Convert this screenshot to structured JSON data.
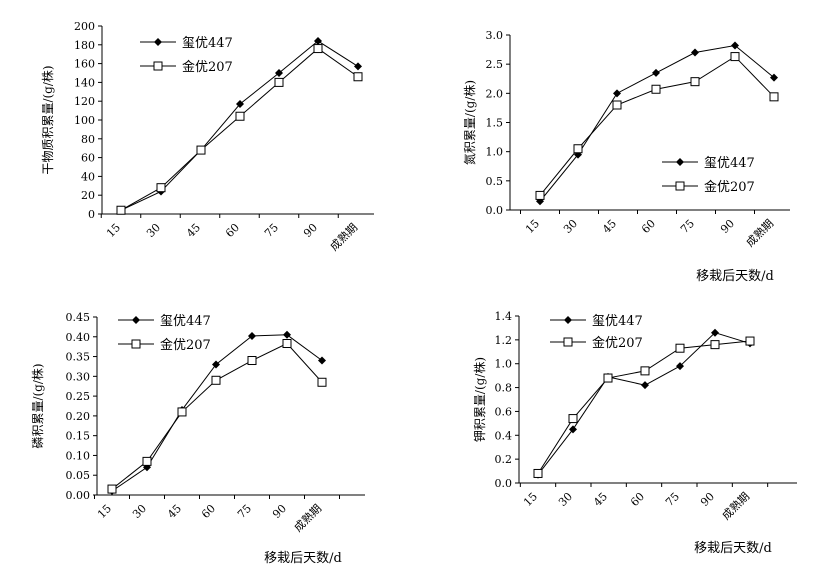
{
  "chart_data": [
    {
      "type": "line",
      "categories": [
        "15",
        "30",
        "45",
        "60",
        "75",
        "90",
        "成熟期"
      ],
      "ylabel": "干物质积累量/(g/株)",
      "xlabel": "",
      "ylim": [
        0,
        200
      ],
      "yticks": [
        "0",
        "20",
        "40",
        "60",
        "80",
        "100",
        "120",
        "140",
        "160",
        "180",
        "200"
      ],
      "legend": "top-left",
      "series": [
        {
          "name": "玺优447",
          "marker": "filled-diamond",
          "values": [
            4,
            24,
            68,
            117,
            150,
            184,
            157
          ]
        },
        {
          "name": "金优207",
          "marker": "open-square",
          "values": [
            4,
            28,
            68,
            104,
            140,
            176,
            146
          ]
        }
      ]
    },
    {
      "type": "line",
      "categories": [
        "15",
        "30",
        "45",
        "60",
        "75",
        "90",
        "成熟期"
      ],
      "ylabel": "氮积累量/(g/株)",
      "xlabel": "移栽后天数/d",
      "ylim": [
        0,
        3.0
      ],
      "yticks": [
        "0.0",
        "0.5",
        "1.0",
        "1.5",
        "2.0",
        "2.5",
        "3.0"
      ],
      "legend": "bottom-right",
      "series": [
        {
          "name": "玺优447",
          "marker": "filled-diamond",
          "values": [
            0.15,
            0.95,
            2.0,
            2.35,
            2.7,
            2.82,
            2.27
          ]
        },
        {
          "name": "金优207",
          "marker": "open-square",
          "values": [
            0.25,
            1.05,
            1.8,
            2.07,
            2.2,
            2.63,
            1.94
          ]
        }
      ]
    },
    {
      "type": "line",
      "categories": [
        "15",
        "30",
        "45",
        "60",
        "75",
        "90",
        "成熟期"
      ],
      "ylabel": "磷积累量/(g/株)",
      "xlabel": "移栽后天数/d",
      "ylim": [
        0,
        0.45
      ],
      "yticks": [
        "0.00",
        "0.05",
        "0.10",
        "0.15",
        "0.20",
        "0.25",
        "0.30",
        "0.35",
        "0.40",
        "0.45"
      ],
      "legend": "top-left",
      "series": [
        {
          "name": "玺优447",
          "marker": "filled-diamond",
          "values": [
            0.01,
            0.07,
            0.215,
            0.33,
            0.402,
            0.405,
            0.34
          ]
        },
        {
          "name": "金优207",
          "marker": "open-square",
          "values": [
            0.015,
            0.085,
            0.21,
            0.29,
            0.34,
            0.383,
            0.285
          ]
        }
      ]
    },
    {
      "type": "line",
      "categories": [
        "15",
        "30",
        "45",
        "60",
        "75",
        "90",
        "成熟期"
      ],
      "ylabel": "钾积累量/(g/株)",
      "xlabel": "移栽后天数/d",
      "ylim": [
        0,
        1.4
      ],
      "yticks": [
        "0.0",
        "0.2",
        "0.4",
        "0.6",
        "0.8",
        "1.0",
        "1.2",
        "1.4"
      ],
      "legend": "top-left",
      "series": [
        {
          "name": "玺优447",
          "marker": "filled-diamond",
          "values": [
            0.07,
            0.45,
            0.89,
            0.82,
            0.98,
            1.26,
            1.17
          ]
        },
        {
          "name": "金优207",
          "marker": "open-square",
          "values": [
            0.08,
            0.54,
            0.88,
            0.94,
            1.13,
            1.16,
            1.19
          ]
        }
      ]
    }
  ]
}
